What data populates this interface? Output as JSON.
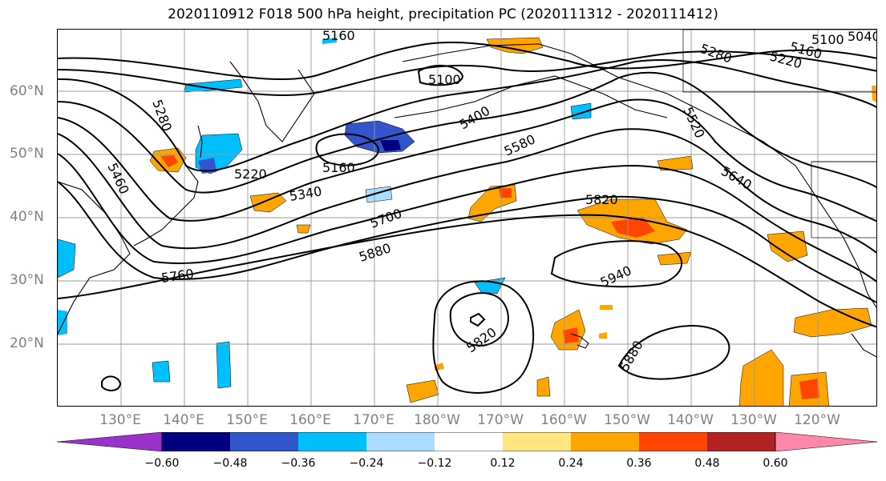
{
  "title": "2020110912 F018 500 hPa height, precipitation PC (2020111312 - 2020111412)",
  "lat_labels": [
    "60°N",
    "50°N",
    "40°N",
    "30°N",
    "20°N"
  ],
  "lon_labels": [
    "130°E",
    "140°E",
    "150°E",
    "160°E",
    "170°E",
    "180°W",
    "170°W",
    "160°W",
    "150°W",
    "140°W",
    "130°W",
    "120°W"
  ],
  "contour_labels": [
    "5160",
    "5100",
    "5160",
    "5100",
    "5040",
    "5280",
    "5220",
    "5280",
    "5220",
    "5160",
    "5400",
    "5520",
    "5580",
    "5640",
    "5460",
    "5340",
    "5700",
    "5820",
    "5880",
    "5940",
    "5760",
    "5820",
    "5880"
  ],
  "colorbar": {
    "colors": [
      "#9933cc",
      "#000080",
      "#3355cc",
      "#00bfff",
      "#aaddff",
      "#ffffff",
      "#ffe680",
      "#ffa500",
      "#ff4500",
      "#b22222",
      "#ff88aa"
    ],
    "ticks": [
      "−0.60",
      "−0.48",
      "−0.36",
      "−0.24",
      "−0.12",
      "0.12",
      "0.24",
      "0.36",
      "0.48",
      "0.60"
    ]
  }
}
